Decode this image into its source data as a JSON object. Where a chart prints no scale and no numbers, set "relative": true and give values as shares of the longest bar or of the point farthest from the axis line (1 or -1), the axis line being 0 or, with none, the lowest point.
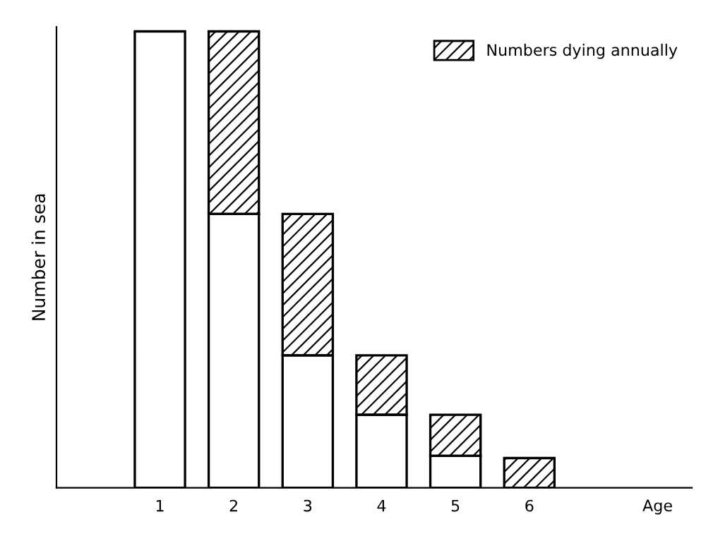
{
  "chart_data": {
    "type": "bar",
    "stacked": true,
    "relative": true,
    "annotations": [
      "Age"
    ],
    "ylabel": "Number in sea",
    "categories": [
      "1",
      "2",
      "3",
      "4",
      "5",
      "6"
    ],
    "series": [
      {
        "color": "#ffffff",
        "values": [
          1.0,
          0.6,
          0.29,
          0.16,
          0.07,
          null
        ]
      },
      {
        "name": "Numbers dying annually",
        "color": "#000000",
        "values": [
          null,
          0.4,
          0.31,
          0.13,
          0.09,
          0.065
        ]
      }
    ],
    "legend": "top right",
    "grid": false
  }
}
